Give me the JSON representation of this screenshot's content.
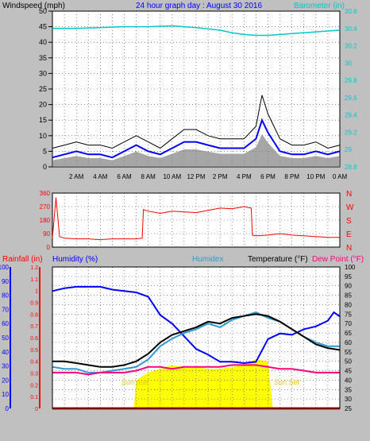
{
  "header": {
    "left_label": "Windspeed (mph)",
    "title": "24 hour graph day : August 30 2016",
    "right_label": "Barometer (in)"
  },
  "bottom_header": {
    "rainfall": "Rainfall (in)",
    "humidity": "Humidity (%)",
    "humidex": "Humidex",
    "temperature": "Temperature (°F)",
    "dewpoint": "Dew Point (°F)"
  },
  "annotations": {
    "sunrise": "Sun rise",
    "sunset": "Sun Set"
  },
  "colors": {
    "background": "#c0c0c0",
    "plot_bg": "#ffffff",
    "wind_max": "#000000",
    "wind_avg": "#0000ff",
    "wind_gust_fill": "#808080",
    "barometer": "#00c8c8",
    "direction": "#ff0000",
    "rain": "#ff0000",
    "humidity": "#0000ff",
    "humidex": "#2e9ad0",
    "temperature": "#000000",
    "dewpoint": "#ff007f",
    "solar": "#ffff00"
  },
  "chart_data": [
    {
      "type": "line",
      "title": "24 hour graph day : August 30 2016",
      "xlabel": "",
      "ylabel": "Windspeed (mph)",
      "y2label": "Barometer (in)",
      "x_ticks": [
        "2 AM",
        "4 AM",
        "6 AM",
        "8 AM",
        "10 AM",
        "12 PM",
        "2 PM",
        "4 PM",
        "6 PM",
        "8 PM",
        "10 PM",
        "0 AM"
      ],
      "xlim": [
        0,
        24
      ],
      "ylim": [
        0,
        50
      ],
      "y_ticks": [
        0,
        5,
        10,
        15,
        20,
        25,
        30,
        35,
        40,
        45,
        50
      ],
      "y2lim": [
        28.8,
        30.6
      ],
      "y2_ticks": [
        "28.8",
        "29",
        "29.2",
        "29.4",
        "29.6",
        "29.8",
        "30",
        "30.2",
        "30.4",
        "30.6"
      ],
      "grid": true,
      "series": [
        {
          "name": "Windspeed (mph)",
          "x": [
            0,
            1,
            2,
            3,
            4,
            5,
            6,
            7,
            8,
            9,
            10,
            11,
            12,
            13,
            14,
            15,
            16,
            17,
            17.5,
            18,
            19,
            20,
            21,
            22,
            23,
            24
          ],
          "values": [
            6,
            7,
            8,
            7,
            7,
            6,
            8,
            10,
            8,
            6,
            9,
            12,
            12,
            10,
            9,
            9,
            9,
            13,
            23,
            17,
            9,
            7,
            7,
            8,
            6,
            7
          ]
        },
        {
          "name": "Average windspeed",
          "x": [
            0,
            1,
            2,
            3,
            4,
            5,
            6,
            7,
            8,
            9,
            10,
            11,
            12,
            13,
            14,
            15,
            16,
            17,
            17.5,
            18,
            19,
            20,
            21,
            22,
            23,
            24
          ],
          "values": [
            3,
            4,
            5,
            4,
            4,
            3,
            5,
            7,
            5,
            4,
            6,
            8,
            8,
            7,
            6,
            6,
            6,
            9,
            15,
            11,
            5,
            4,
            4,
            5,
            4,
            5
          ]
        },
        {
          "name": "Barometer (in)",
          "x": [
            0,
            2,
            4,
            6,
            8,
            10,
            12,
            14,
            15,
            16,
            17,
            18,
            19,
            20,
            21,
            22,
            23,
            24
          ],
          "values": [
            30.4,
            30.4,
            30.41,
            30.42,
            30.42,
            30.43,
            30.41,
            30.38,
            30.35,
            30.33,
            30.32,
            30.32,
            30.33,
            30.34,
            30.35,
            30.36,
            30.37,
            30.38
          ]
        }
      ]
    },
    {
      "type": "line",
      "xlabel": "",
      "ylabel": "",
      "ylim": [
        0,
        360
      ],
      "y_ticks": [
        0,
        90,
        180,
        270,
        360
      ],
      "y2_ticks": [
        "N",
        "W",
        "S",
        "E",
        "N"
      ],
      "grid": true,
      "series": [
        {
          "name": "Wind direction",
          "x": [
            0,
            0.3,
            0.6,
            1,
            2,
            3,
            4,
            5,
            6,
            7,
            7.5,
            7.6,
            8,
            9,
            10,
            11,
            12,
            13,
            14,
            15,
            16,
            16.6,
            16.7,
            17,
            18,
            19,
            20,
            21,
            22,
            23,
            24
          ],
          "values": [
            60,
            330,
            70,
            60,
            55,
            55,
            50,
            55,
            55,
            55,
            60,
            250,
            240,
            225,
            240,
            235,
            230,
            245,
            260,
            255,
            270,
            260,
            80,
            75,
            80,
            90,
            80,
            75,
            70,
            65,
            65
          ]
        }
      ]
    },
    {
      "type": "line",
      "xlabel": "",
      "ylabel": "Rainfall (in)",
      "ylim_rain": [
        0,
        1.2
      ],
      "y_ticks_rain": [
        "0",
        "0.1",
        "0.2",
        "0.3",
        "0.4",
        "0.5",
        "0.6",
        "0.7",
        "0.8",
        "0.9",
        "1",
        "1.1",
        "1.2"
      ],
      "ylim_humidity": [
        0,
        100
      ],
      "y_ticks_humidity": [
        0,
        10,
        20,
        30,
        40,
        50,
        60,
        70,
        80,
        90,
        100
      ],
      "ylim_temp": [
        25,
        100
      ],
      "y_ticks_temp": [
        25,
        30,
        35,
        40,
        45,
        50,
        55,
        60,
        65,
        70,
        75,
        80,
        85,
        90,
        95,
        100
      ],
      "grid": true,
      "series": [
        {
          "name": "Rainfall (in)",
          "x": [
            0,
            24
          ],
          "values": [
            0,
            0
          ]
        },
        {
          "name": "Humidity (%)",
          "x": [
            0,
            1,
            2,
            3,
            4,
            5,
            6,
            7,
            8,
            9,
            10,
            11,
            12,
            13,
            14,
            15,
            16,
            17,
            18,
            19,
            20,
            21,
            22,
            23,
            23.5,
            24
          ],
          "values": [
            83,
            85,
            86,
            86,
            86,
            84,
            83,
            82,
            79,
            66,
            60,
            51,
            42,
            38,
            33,
            33,
            32,
            33,
            49,
            53,
            52,
            56,
            58,
            62,
            68,
            65
          ]
        },
        {
          "name": "Humidex",
          "x": [
            0,
            1,
            2,
            3,
            4,
            5,
            6,
            7,
            8,
            9,
            10,
            11,
            12,
            13,
            14,
            15,
            16,
            17,
            18,
            19,
            20,
            21,
            22,
            23,
            24
          ],
          "values": [
            47,
            46,
            46,
            44,
            44,
            45,
            46,
            47,
            51,
            58,
            62,
            65,
            67,
            70,
            68,
            72,
            74,
            76,
            73,
            71,
            67,
            63,
            60,
            58,
            58
          ]
        },
        {
          "name": "Temperature (°F)",
          "x": [
            0,
            1,
            2,
            3,
            4,
            5,
            6,
            7,
            8,
            9,
            10,
            11,
            12,
            13,
            14,
            15,
            16,
            17,
            18,
            19,
            20,
            21,
            22,
            23,
            24
          ],
          "values": [
            50,
            50,
            49,
            48,
            47,
            47,
            48,
            50,
            54,
            60,
            64,
            66,
            68,
            71,
            70,
            73,
            74,
            75,
            74,
            71,
            67,
            63,
            59,
            57,
            56
          ]
        },
        {
          "name": "Dew Point (°F)",
          "x": [
            0,
            1,
            2,
            3,
            4,
            5,
            6,
            7,
            8,
            9,
            10,
            11,
            12,
            13,
            14,
            15,
            16,
            17,
            18,
            19,
            20,
            21,
            22,
            23,
            24
          ],
          "values": [
            44,
            44,
            44,
            43,
            44,
            44,
            44,
            45,
            47,
            47,
            46,
            47,
            47,
            47,
            47,
            48,
            48,
            48,
            47,
            46,
            46,
            45,
            44,
            44,
            44
          ]
        },
        {
          "name": "Solar",
          "x": [
            6.8,
            7,
            8,
            9,
            10,
            11,
            12,
            13,
            14,
            15,
            16,
            17,
            18,
            18.4
          ],
          "values": [
            0,
            40,
            44,
            46,
            48,
            47,
            47,
            46,
            46,
            47,
            48,
            51,
            50,
            0
          ]
        }
      ]
    }
  ]
}
